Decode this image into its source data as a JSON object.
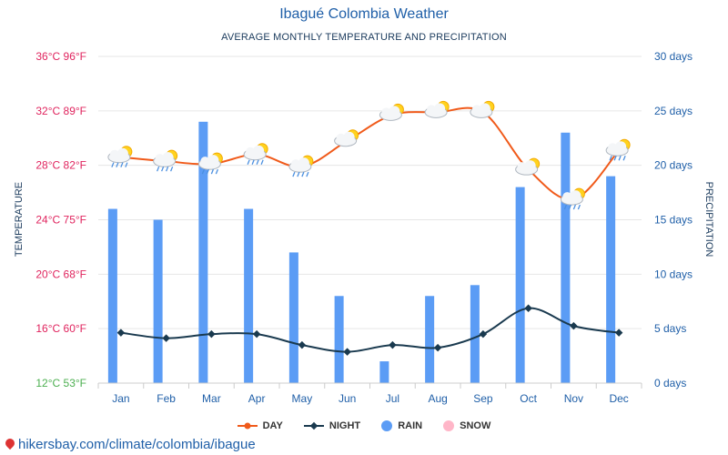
{
  "chart_data": {
    "type": "line",
    "title": "Ibagué Colombia Weather",
    "subtitle": "AVERAGE MONTHLY TEMPERATURE AND PRECIPITATION",
    "categories": [
      "Jan",
      "Feb",
      "Mar",
      "Apr",
      "May",
      "Jun",
      "Jul",
      "Aug",
      "Sep",
      "Oct",
      "Nov",
      "Dec"
    ],
    "left_axis": {
      "label": "TEMPERATURE",
      "range_c": [
        12,
        36
      ],
      "ticks_c": [
        12,
        16,
        20,
        24,
        28,
        32,
        36
      ],
      "tick_labels": [
        "12°C 53°F",
        "16°C 60°F",
        "20°C 68°F",
        "24°C 75°F",
        "28°C 82°F",
        "32°C 89°F",
        "36°C 96°F"
      ]
    },
    "right_axis": {
      "label": "PRECIPITATION",
      "range_days": [
        0,
        30
      ],
      "ticks": [
        0,
        5,
        10,
        15,
        20,
        25,
        30
      ],
      "tick_labels": [
        "0 days",
        "5 days",
        "10 days",
        "15 days",
        "20 days",
        "25 days",
        "30 days"
      ]
    },
    "series": [
      {
        "name": "DAY",
        "kind": "line",
        "axis": "left",
        "color": "#f05a1a",
        "values": [
          28.6,
          28.3,
          28.1,
          28.8,
          27.9,
          29.8,
          31.7,
          31.9,
          31.9,
          27.7,
          25.5,
          29.1
        ]
      },
      {
        "name": "NIGHT",
        "kind": "line",
        "axis": "left",
        "color": "#1a3a4f",
        "values": [
          15.7,
          15.3,
          15.6,
          15.6,
          14.8,
          14.3,
          14.8,
          14.6,
          15.6,
          17.5,
          16.2,
          15.7
        ]
      },
      {
        "name": "RAIN",
        "kind": "bar",
        "axis": "right",
        "color": "#5b9cf5",
        "values": [
          16,
          15,
          24,
          16,
          12,
          8,
          2,
          8,
          9,
          18,
          23,
          19
        ]
      },
      {
        "name": "SNOW",
        "kind": "bar",
        "axis": "right",
        "color": "#ffb6c8",
        "values": [
          0,
          0,
          0,
          0,
          0,
          0,
          0,
          0,
          0,
          0,
          0,
          0
        ]
      }
    ],
    "weather_icons": [
      "partly-cloudy-rain-icon",
      "partly-cloudy-rain-icon",
      "partly-cloudy-rain-icon",
      "partly-cloudy-rain-icon",
      "partly-cloudy-rain-icon",
      "partly-cloudy-icon",
      "partly-cloudy-icon",
      "partly-cloudy-icon",
      "partly-cloudy-icon",
      "partly-cloudy-icon",
      "partly-cloudy-rain-icon",
      "partly-cloudy-rain-icon"
    ],
    "grid": true,
    "legend": "bottom-center"
  },
  "footer": {
    "text": "hikersbay.com/climate/colombia/ibague"
  },
  "colors": {
    "title": "#1f5fa8",
    "left_ticks": "#e0245e",
    "left_tick_min": "#4caf50",
    "right_ticks": "#1f5fa8",
    "grid": "#e6e6e6"
  }
}
